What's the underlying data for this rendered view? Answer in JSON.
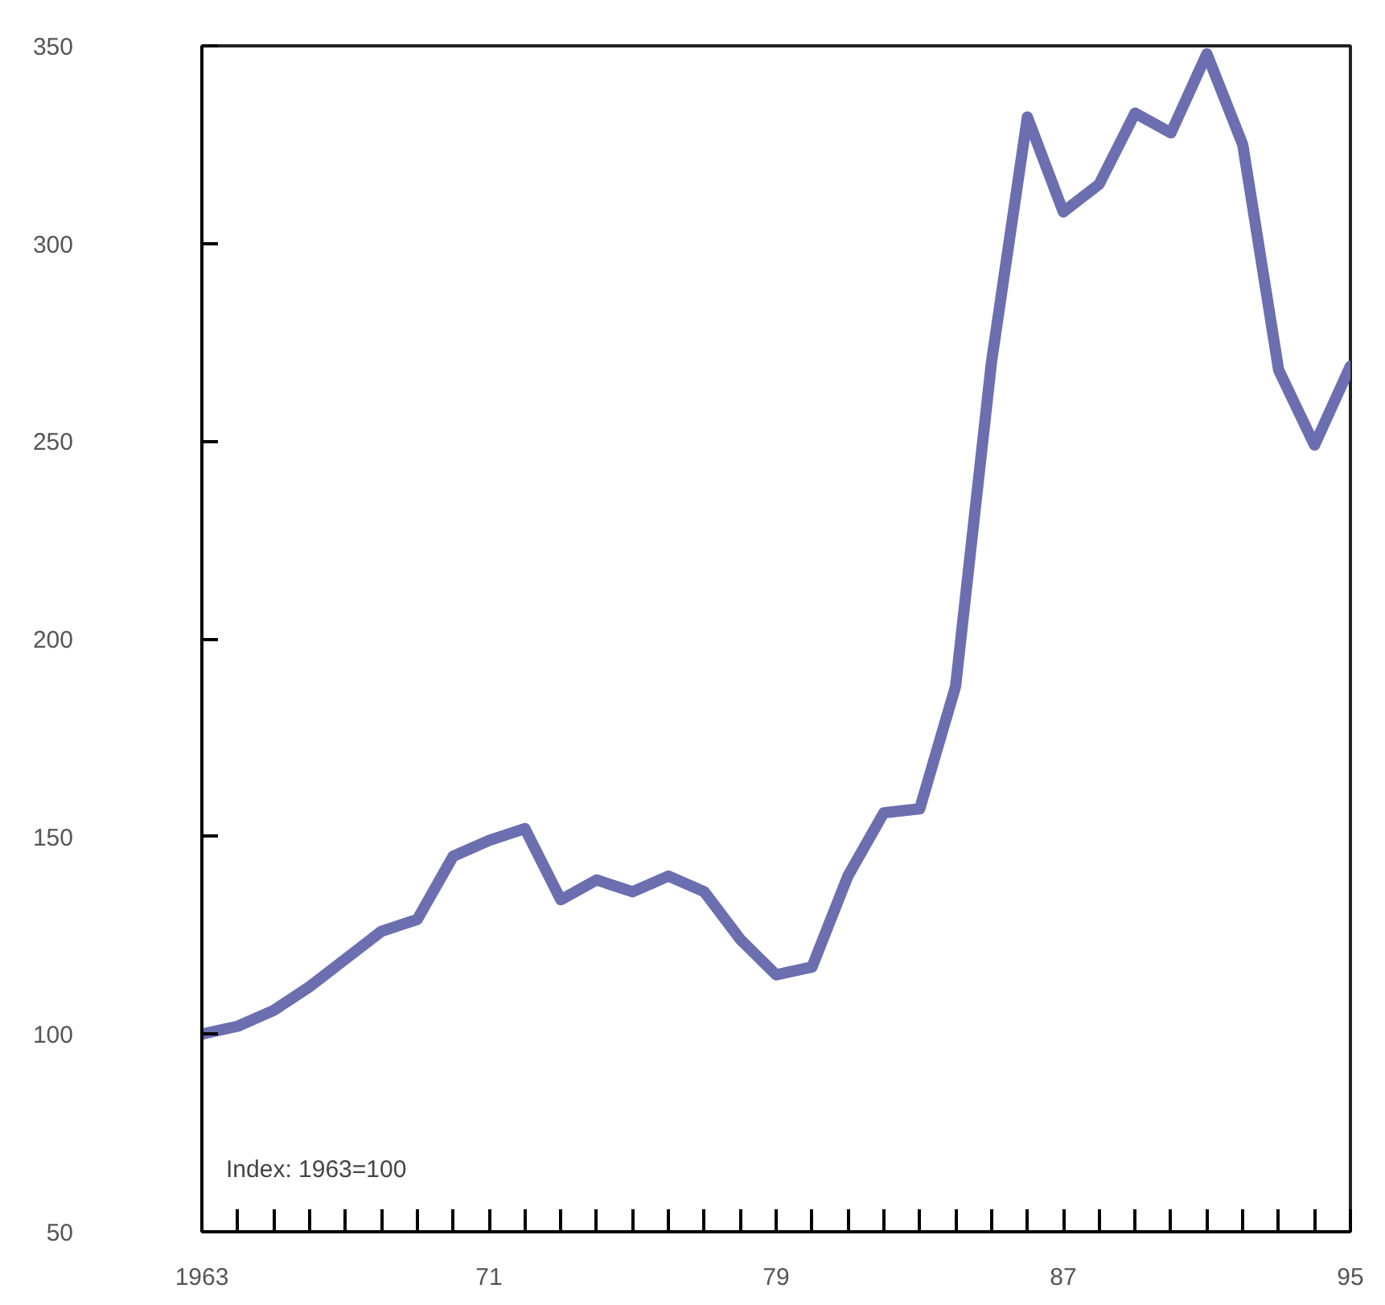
{
  "chart_data": {
    "type": "line",
    "x": [
      1963,
      1964,
      1965,
      1966,
      1967,
      1968,
      1969,
      1970,
      1971,
      1972,
      1973,
      1974,
      1975,
      1976,
      1977,
      1978,
      1979,
      1980,
      1981,
      1982,
      1983,
      1984,
      1985,
      1986,
      1987,
      1988,
      1989,
      1990,
      1991,
      1992,
      1993,
      1994,
      1995
    ],
    "series": [
      {
        "color": "#6b6fb0",
        "values": [
          100,
          102,
          106,
          112,
          119,
          126,
          129,
          145,
          149,
          152,
          134,
          139,
          136,
          140,
          136,
          124,
          115,
          117,
          140,
          156,
          157,
          188,
          270,
          332,
          308,
          315,
          333,
          328,
          348,
          325,
          268,
          249,
          269
        ]
      }
    ],
    "xlim": [
      1963,
      1995
    ],
    "xticks": [
      {
        "value": 1963,
        "label": "1963"
      },
      {
        "value": 1964,
        "label": null
      },
      {
        "value": 1965,
        "label": null
      },
      {
        "value": 1966,
        "label": null
      },
      {
        "value": 1967,
        "label": null
      },
      {
        "value": 1968,
        "label": null
      },
      {
        "value": 1969,
        "label": null
      },
      {
        "value": 1970,
        "label": null
      },
      {
        "value": 1971,
        "label": "71"
      },
      {
        "value": 1972,
        "label": null
      },
      {
        "value": 1973,
        "label": null
      },
      {
        "value": 1974,
        "label": null
      },
      {
        "value": 1975,
        "label": null
      },
      {
        "value": 1976,
        "label": null
      },
      {
        "value": 1977,
        "label": null
      },
      {
        "value": 1978,
        "label": null
      },
      {
        "value": 1979,
        "label": "79"
      },
      {
        "value": 1980,
        "label": null
      },
      {
        "value": 1981,
        "label": null
      },
      {
        "value": 1982,
        "label": null
      },
      {
        "value": 1983,
        "label": null
      },
      {
        "value": 1984,
        "label": null
      },
      {
        "value": 1985,
        "label": null
      },
      {
        "value": 1986,
        "label": null
      },
      {
        "value": 1987,
        "label": "87"
      },
      {
        "value": 1988,
        "label": null
      },
      {
        "value": 1989,
        "label": null
      },
      {
        "value": 1990,
        "label": null
      },
      {
        "value": 1991,
        "label": null
      },
      {
        "value": 1992,
        "label": null
      },
      {
        "value": 1993,
        "label": null
      },
      {
        "value": 1994,
        "label": null
      },
      {
        "value": 1995,
        "label": "95"
      }
    ],
    "ylim": [
      50,
      350
    ],
    "yticks": [
      50,
      100,
      150,
      200,
      250,
      300,
      350
    ],
    "annotations": [
      "Index: 1963=100"
    ],
    "grid": false,
    "line_style": "solid",
    "marker": "none"
  }
}
